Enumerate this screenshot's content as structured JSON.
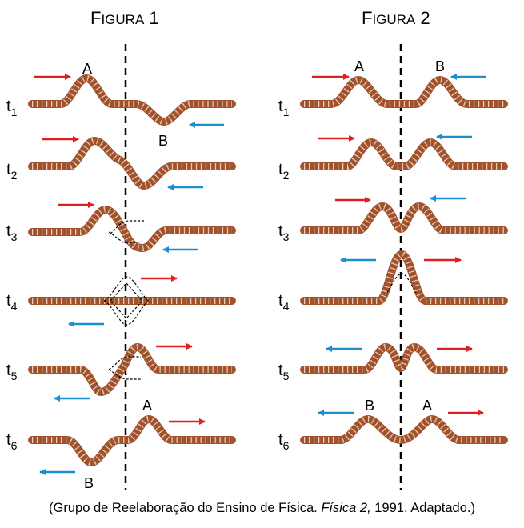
{
  "figures": [
    {
      "id": "fig1",
      "title_first": "F",
      "title_rest": "IGURA",
      "title_num": "1",
      "rows": [
        {
          "t": "t",
          "sub": "1",
          "labels": [
            {
              "text": "A"
            },
            {
              "text": "B"
            }
          ]
        },
        {
          "t": "t",
          "sub": "2",
          "labels": []
        },
        {
          "t": "t",
          "sub": "3",
          "labels": []
        },
        {
          "t": "t",
          "sub": "4",
          "labels": []
        },
        {
          "t": "t",
          "sub": "5",
          "labels": []
        },
        {
          "t": "t",
          "sub": "6",
          "labels": [
            {
              "text": "A"
            },
            {
              "text": "B"
            }
          ]
        }
      ]
    },
    {
      "id": "fig2",
      "title_first": "F",
      "title_rest": "IGURA",
      "title_num": "2",
      "rows": [
        {
          "t": "t",
          "sub": "1",
          "labels": [
            {
              "text": "A"
            },
            {
              "text": "B"
            }
          ]
        },
        {
          "t": "t",
          "sub": "2",
          "labels": []
        },
        {
          "t": "t",
          "sub": "3",
          "labels": []
        },
        {
          "t": "t",
          "sub": "4",
          "labels": []
        },
        {
          "t": "t",
          "sub": "5",
          "labels": []
        },
        {
          "t": "t",
          "sub": "6",
          "labels": [
            {
              "text": "B"
            },
            {
              "text": "A"
            }
          ]
        }
      ]
    }
  ],
  "caption": {
    "prefix": "(Grupo de Reelaboração do Ensino de Física. ",
    "italic": "Física 2,",
    "suffix": " 1991. Adaptado.)"
  },
  "colors": {
    "rope": "#a0522d",
    "rope_stripe": "#e8c8b0",
    "arrow_red": "#e02020",
    "arrow_blue": "#1a8fd0",
    "dashed_line": "#000000"
  }
}
